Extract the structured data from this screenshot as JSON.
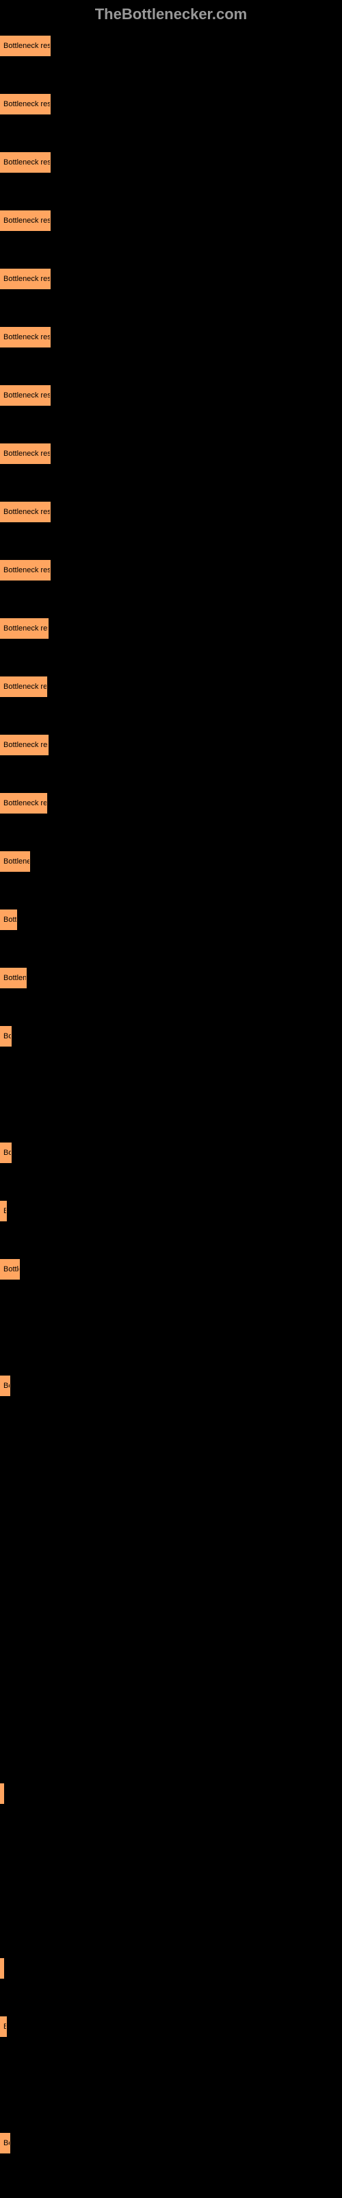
{
  "header": {
    "title": "TheBottlenecker.com"
  },
  "chart": {
    "type": "bar",
    "max_width": 490,
    "bar_color": "#ffa560",
    "bar_border_color": "#ffa560",
    "background_color": "#000000",
    "label_color": "#000000",
    "sublabel_color": "#666666",
    "bars": [
      {
        "width_pct": 15,
        "label": "Bottleneck result",
        "sublabel": ""
      },
      {
        "width_pct": 15,
        "label": "Bottleneck result",
        "sublabel": ""
      },
      {
        "width_pct": 15,
        "label": "Bottleneck result",
        "sublabel": ""
      },
      {
        "width_pct": 15,
        "label": "Bottleneck result",
        "sublabel": ""
      },
      {
        "width_pct": 15,
        "label": "Bottleneck result",
        "sublabel": ""
      },
      {
        "width_pct": 15,
        "label": "Bottleneck result",
        "sublabel": ""
      },
      {
        "width_pct": 15,
        "label": "Bottleneck result",
        "sublabel": ""
      },
      {
        "width_pct": 15,
        "label": "Bottleneck result",
        "sublabel": ""
      },
      {
        "width_pct": 15,
        "label": "Bottleneck result",
        "sublabel": ""
      },
      {
        "width_pct": 15,
        "label": "Bottleneck result",
        "sublabel": ""
      },
      {
        "width_pct": 14.5,
        "label": "Bottleneck result",
        "sublabel": ""
      },
      {
        "width_pct": 14,
        "label": "Bottleneck result",
        "sublabel": ""
      },
      {
        "width_pct": 14.5,
        "label": "Bottleneck result",
        "sublabel": ""
      },
      {
        "width_pct": 14,
        "label": "Bottleneck result",
        "sublabel": ""
      },
      {
        "width_pct": 9,
        "label": "Bottleneck result",
        "sublabel": ""
      },
      {
        "width_pct": 5,
        "label": "Bottleneck result",
        "sublabel": ""
      },
      {
        "width_pct": 8,
        "label": "Bottleneck result",
        "sublabel": ""
      },
      {
        "width_pct": 3.5,
        "label": "Bottleneck result",
        "sublabel": ""
      },
      {
        "width_pct": 0,
        "label": "",
        "sublabel": ""
      },
      {
        "width_pct": 3.5,
        "label": "Bottleneck result",
        "sublabel": ""
      },
      {
        "width_pct": 2,
        "label": "Bottleneck result",
        "sublabel": ""
      },
      {
        "width_pct": 6,
        "label": "Bottleneck result",
        "sublabel": ""
      },
      {
        "width_pct": 0,
        "label": "",
        "sublabel": ""
      },
      {
        "width_pct": 3,
        "label": "Bottleneck result",
        "sublabel": ""
      },
      {
        "width_pct": 0,
        "label": "",
        "sublabel": ""
      },
      {
        "width_pct": 0,
        "label": "",
        "sublabel": ""
      },
      {
        "width_pct": 0,
        "label": "",
        "sublabel": ""
      },
      {
        "width_pct": 0,
        "label": "",
        "sublabel": ""
      },
      {
        "width_pct": 0,
        "label": "",
        "sublabel": ""
      },
      {
        "width_pct": 0,
        "label": "",
        "sublabel": ""
      },
      {
        "width_pct": 1,
        "label": "",
        "sublabel": ""
      },
      {
        "width_pct": 0,
        "label": "",
        "sublabel": ""
      },
      {
        "width_pct": 0,
        "label": "",
        "sublabel": ""
      },
      {
        "width_pct": 1,
        "label": "",
        "sublabel": ""
      },
      {
        "width_pct": 2,
        "label": "Bottleneck result",
        "sublabel": ""
      },
      {
        "width_pct": 0,
        "label": "",
        "sublabel": ""
      },
      {
        "width_pct": 3,
        "label": "Bottleneck result",
        "sublabel": ""
      }
    ]
  }
}
